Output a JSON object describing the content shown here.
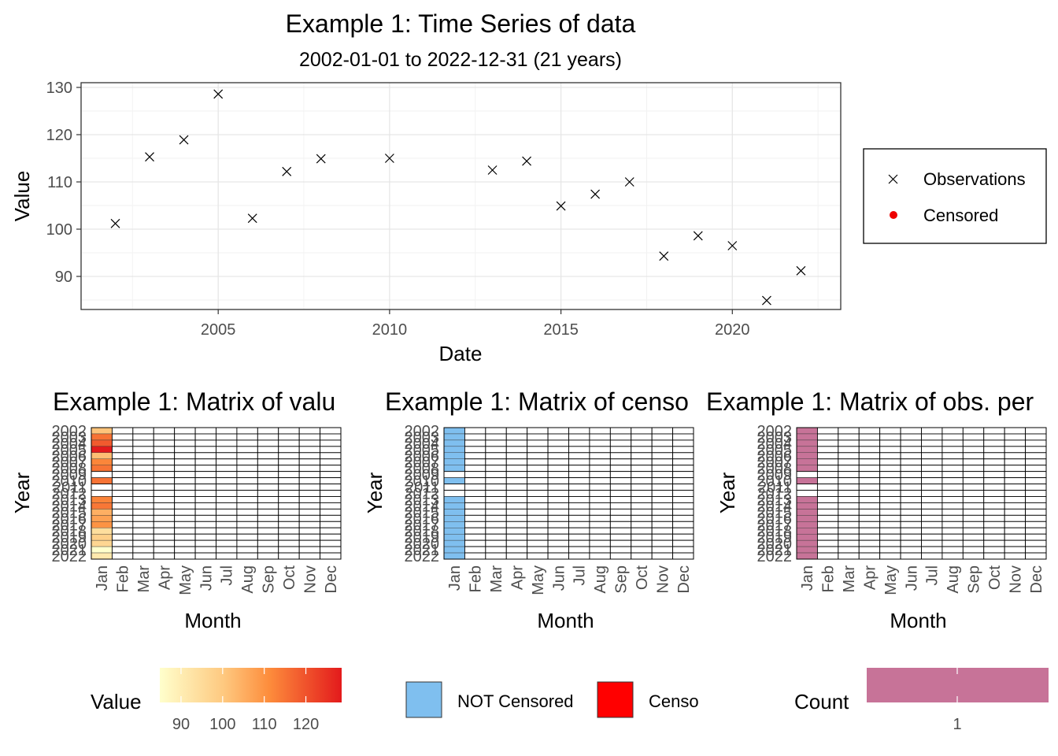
{
  "chart_data": [
    {
      "type": "scatter",
      "title": "Example 1: Time Series of data",
      "subtitle": "2002-01-01 to 2022-12-31 (21 years)",
      "xlabel": "Date",
      "ylabel": "Value",
      "xlim": [
        "2001-01-01",
        "2023-03-01"
      ],
      "ylim": [
        83,
        131
      ],
      "x_ticks": [
        "2005",
        "2010",
        "2015",
        "2020"
      ],
      "y_ticks": [
        90,
        100,
        110,
        120,
        130
      ],
      "grid": true,
      "legend_position": "right",
      "legend": [
        {
          "label": "Observations",
          "marker": "x",
          "color": "#000000"
        },
        {
          "label": "Censored",
          "marker": "dot",
          "color": "#ee0000"
        }
      ],
      "series": [
        {
          "name": "Observations",
          "points": [
            {
              "x": "2002-01-01",
              "y": 101.2
            },
            {
              "x": "2003-01-01",
              "y": 115.3
            },
            {
              "x": "2004-01-01",
              "y": 118.9
            },
            {
              "x": "2005-01-01",
              "y": 128.6
            },
            {
              "x": "2006-01-01",
              "y": 102.3
            },
            {
              "x": "2007-01-01",
              "y": 112.2
            },
            {
              "x": "2008-01-01",
              "y": 114.9
            },
            {
              "x": "2010-01-01",
              "y": 115.0
            },
            {
              "x": "2013-01-01",
              "y": 112.5
            },
            {
              "x": "2014-01-01",
              "y": 114.4
            },
            {
              "x": "2015-01-01",
              "y": 104.9
            },
            {
              "x": "2016-01-01",
              "y": 107.4
            },
            {
              "x": "2017-01-01",
              "y": 110.0
            },
            {
              "x": "2018-01-01",
              "y": 94.3
            },
            {
              "x": "2019-01-01",
              "y": 98.6
            },
            {
              "x": "2020-01-01",
              "y": 96.5
            },
            {
              "x": "2021-01-01",
              "y": 84.9
            },
            {
              "x": "2022-01-01",
              "y": 91.2
            }
          ]
        }
      ]
    },
    {
      "type": "heatmap",
      "title": "Example 1: Matrix of valu",
      "xlabel": "Month",
      "ylabel": "Year",
      "months": [
        "Jan",
        "Feb",
        "Mar",
        "Apr",
        "May",
        "Jun",
        "Jul",
        "Aug",
        "Sep",
        "Oct",
        "Nov",
        "Dec"
      ],
      "years": [
        2002,
        2003,
        2004,
        2005,
        2006,
        2007,
        2008,
        2009,
        2010,
        2011,
        2012,
        2013,
        2014,
        2015,
        2016,
        2017,
        2018,
        2019,
        2020,
        2021,
        2022
      ],
      "jan_values": [
        101.2,
        115.3,
        118.9,
        128.6,
        102.3,
        112.2,
        114.9,
        null,
        115.0,
        null,
        null,
        112.5,
        114.4,
        104.9,
        107.4,
        110.0,
        94.3,
        98.6,
        96.5,
        84.9,
        91.2
      ],
      "color_scale": {
        "low": "#ffffcc",
        "mid": "#fd8d3c",
        "high": "#e31a1c",
        "min": 84.9,
        "max": 128.6
      },
      "legend_title": "Value",
      "legend_ticks": [
        90,
        100,
        110,
        120
      ]
    },
    {
      "type": "heatmap",
      "title": "Example 1: Matrix of censo",
      "xlabel": "Month",
      "ylabel": "Year",
      "months": [
        "Jan",
        "Feb",
        "Mar",
        "Apr",
        "May",
        "Jun",
        "Jul",
        "Aug",
        "Sep",
        "Oct",
        "Nov",
        "Dec"
      ],
      "years": [
        2002,
        2003,
        2004,
        2005,
        2006,
        2007,
        2008,
        2009,
        2010,
        2011,
        2012,
        2013,
        2014,
        2015,
        2016,
        2017,
        2018,
        2019,
        2020,
        2021,
        2022
      ],
      "jan_values": [
        "NOT Censored",
        "NOT Censored",
        "NOT Censored",
        "NOT Censored",
        "NOT Censored",
        "NOT Censored",
        "NOT Censored",
        null,
        "NOT Censored",
        null,
        null,
        "NOT Censored",
        "NOT Censored",
        "NOT Censored",
        "NOT Censored",
        "NOT Censored",
        "NOT Censored",
        "NOT Censored",
        "NOT Censored",
        "NOT Censored",
        "NOT Censored"
      ],
      "legend": [
        {
          "label": "NOT Censored",
          "color": "#7fbfef"
        },
        {
          "label": "Censo",
          "color": "#ff0000"
        }
      ]
    },
    {
      "type": "heatmap",
      "title": "Example 1: Matrix of obs. per",
      "xlabel": "Month",
      "ylabel": "Year",
      "months": [
        "Jan",
        "Feb",
        "Mar",
        "Apr",
        "May",
        "Jun",
        "Jul",
        "Aug",
        "Sep",
        "Oct",
        "Nov",
        "Dec"
      ],
      "years": [
        2002,
        2003,
        2004,
        2005,
        2006,
        2007,
        2008,
        2009,
        2010,
        2011,
        2012,
        2013,
        2014,
        2015,
        2016,
        2017,
        2018,
        2019,
        2020,
        2021,
        2022
      ],
      "jan_values": [
        1,
        1,
        1,
        1,
        1,
        1,
        1,
        null,
        1,
        null,
        null,
        1,
        1,
        1,
        1,
        1,
        1,
        1,
        1,
        1,
        1
      ],
      "cell_color": "#c77398",
      "legend_title": "Count",
      "legend_ticks": [
        1
      ]
    }
  ]
}
